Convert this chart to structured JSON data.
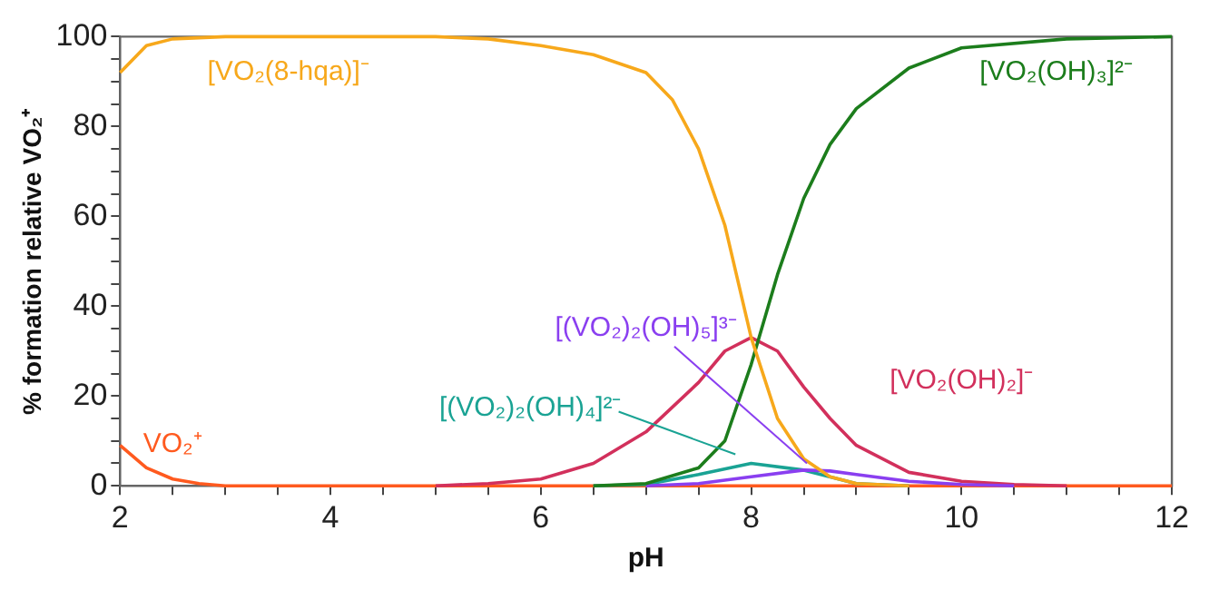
{
  "chart_data": {
    "type": "line",
    "xlabel": "pH",
    "ylabel": "% formation relative VO₂⁺",
    "xlim": [
      2,
      12
    ],
    "ylim": [
      0,
      100
    ],
    "xticks": [
      2,
      {
        "value": 2.5,
        "label": null
      },
      {
        "value": 3,
        "label": null
      },
      {
        "value": 3.5,
        "label": null
      },
      4,
      {
        "value": 4.5,
        "label": null
      },
      {
        "value": 5,
        "label": null
      },
      {
        "value": 5.5,
        "label": null
      },
      6,
      {
        "value": 6.5,
        "label": null
      },
      {
        "value": 7,
        "label": null
      },
      {
        "value": 7.5,
        "label": null
      },
      8,
      {
        "value": 8.5,
        "label": null
      },
      {
        "value": 9,
        "label": null
      },
      {
        "value": 9.5,
        "label": null
      },
      10,
      {
        "value": 10.5,
        "label": null
      },
      {
        "value": 11,
        "label": null
      },
      {
        "value": 11.5,
        "label": null
      },
      12
    ],
    "yticks": [
      0,
      {
        "value": 5,
        "label": null
      },
      {
        "value": 10,
        "label": null
      },
      {
        "value": 15,
        "label": null
      },
      20,
      {
        "value": 25,
        "label": null
      },
      {
        "value": 30,
        "label": null
      },
      {
        "value": 35,
        "label": null
      },
      40,
      {
        "value": 45,
        "label": null
      },
      {
        "value": 50,
        "label": null
      },
      {
        "value": 55,
        "label": null
      },
      60,
      {
        "value": 65,
        "label": null
      },
      {
        "value": 70,
        "label": null
      },
      {
        "value": 75,
        "label": null
      },
      80,
      {
        "value": 85,
        "label": null
      },
      {
        "value": 90,
        "label": null
      },
      {
        "value": 95,
        "label": null
      },
      100
    ],
    "grid": false,
    "legend": false,
    "marker": "none",
    "line_style": "solid",
    "series": [
      {
        "name": "[VO₂(8-hqa)]⁻",
        "color": "#f7a81b",
        "x": [
          2,
          2.25,
          2.5,
          3,
          4,
          5,
          5.5,
          6,
          6.5,
          7,
          7.25,
          7.5,
          7.75,
          8,
          8.25,
          8.5,
          8.75,
          9,
          9.5
        ],
        "values": [
          92,
          98,
          99.5,
          100,
          100,
          100,
          99.5,
          98,
          96,
          92,
          86,
          75,
          58,
          33,
          15,
          6,
          2,
          0.5,
          0
        ]
      },
      {
        "name": "[VO₂(OH)₃]²⁻",
        "color": "#1c7d1c",
        "x": [
          6.5,
          7,
          7.5,
          7.75,
          8,
          8.25,
          8.5,
          8.75,
          9,
          9.5,
          10,
          11,
          12
        ],
        "values": [
          0,
          0.5,
          4,
          10,
          27,
          47,
          64,
          76,
          84,
          93,
          97.5,
          99.5,
          100
        ]
      },
      {
        "name": "[(VO₂)₂(OH)₅]³⁻",
        "color": "#8a3ff0",
        "x": [
          7,
          7.5,
          8,
          8.5,
          8.75,
          9,
          9.5,
          10,
          10.5
        ],
        "values": [
          0,
          0.5,
          2,
          3.5,
          3.3,
          2.5,
          1,
          0.3,
          0
        ]
      },
      {
        "name": "[VO₂(OH)₂]⁻",
        "color": "#d2305c",
        "x": [
          5,
          5.5,
          6,
          6.5,
          7,
          7.5,
          7.75,
          8,
          8.25,
          8.5,
          8.75,
          9,
          9.5,
          10,
          10.5,
          11
        ],
        "values": [
          0,
          0.5,
          1.5,
          5,
          12,
          23,
          30,
          33,
          30,
          22,
          15,
          9,
          3,
          1,
          0.3,
          0
        ]
      },
      {
        "name": "[(VO₂)₂(OH)₄]²⁻",
        "color": "#1aa394",
        "x": [
          6.5,
          7,
          7.5,
          8,
          8.5,
          9,
          9.5
        ],
        "values": [
          0,
          0.3,
          2.5,
          5,
          3.5,
          0.5,
          0
        ]
      },
      {
        "name": "VO₂⁺",
        "color": "#ff5a1f",
        "x": [
          2,
          2.25,
          2.5,
          2.75,
          3,
          12
        ],
        "values": [
          9,
          4,
          1.5,
          0.5,
          0,
          0
        ]
      }
    ]
  }
}
